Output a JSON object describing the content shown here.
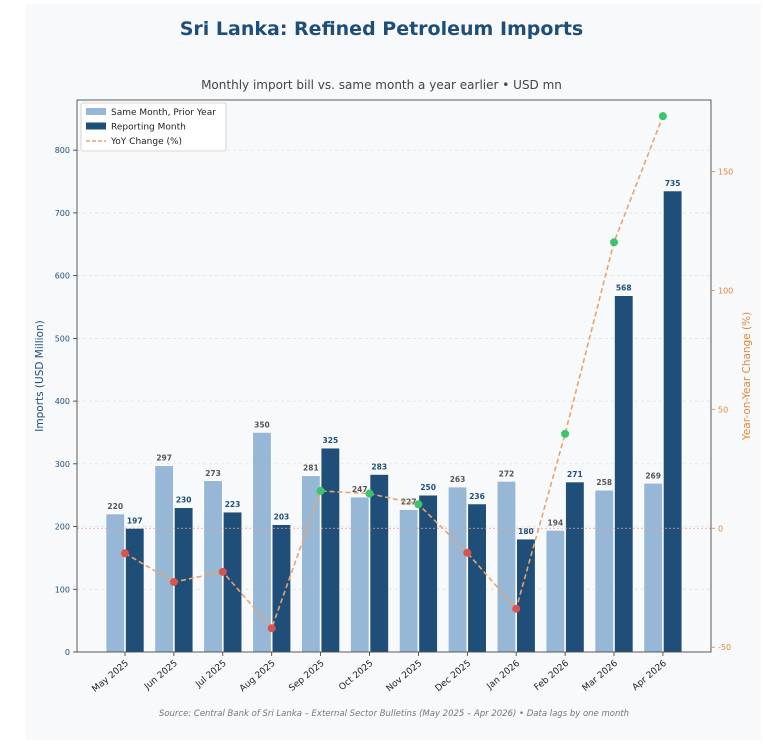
{
  "header": {
    "title": "Sri Lanka: Refined Petroleum Imports",
    "subtitle": "Monthly import bill vs. same month a year earlier  •  USD mn"
  },
  "footer": {
    "source": "Source: Central Bank of Sri Lanka – External Sector Bulletins (May 2025 – Apr 2026)  •  Data lags by one month"
  },
  "colors": {
    "prior_bar": "#97b7d6",
    "current_bar": "#1f4e79",
    "yoy_line": "#e8a46a",
    "yoy_positive": "#3cc46a",
    "yoy_negative": "#d9534f",
    "right_axis": "#e0873a",
    "left_axis": "#1f4e79"
  },
  "chart_data": {
    "type": "bar",
    "title": "Monthly import bill vs. same month a year earlier  •  USD mn",
    "categories": [
      "May 2025",
      "Jun 2025",
      "Jul 2025",
      "Aug 2025",
      "Sep 2025",
      "Oct 2025",
      "Nov 2025",
      "Dec 2025",
      "Jan 2026",
      "Feb 2026",
      "Mar 2026",
      "Apr 2026"
    ],
    "series": [
      {
        "name": "Same Month, Prior Year",
        "values": [
          220,
          297,
          273,
          350,
          281,
          247,
          227,
          263,
          272,
          194,
          258,
          269
        ]
      },
      {
        "name": "Reporting Month",
        "values": [
          197,
          230,
          223,
          203,
          325,
          283,
          250,
          236,
          180,
          271,
          568,
          735
        ]
      },
      {
        "name": "YoY Change (%)",
        "axis": "right",
        "style": "line",
        "values": [
          -10.5,
          -22.6,
          -18.3,
          -42.0,
          15.7,
          14.6,
          10.1,
          -10.3,
          -33.8,
          39.7,
          120.2,
          173.2
        ]
      }
    ],
    "ylabel": "Imports (USD Million)",
    "ylabel_right": "Year-on-Year Change (%)",
    "ylim": [
      0,
      880
    ],
    "ylim_right": [
      -52,
      180
    ],
    "yticks": [
      0,
      100,
      200,
      300,
      400,
      500,
      600,
      700,
      800
    ],
    "yticks_right": [
      -50,
      0,
      50,
      100,
      150
    ],
    "grid": true,
    "legend": "top-left"
  }
}
